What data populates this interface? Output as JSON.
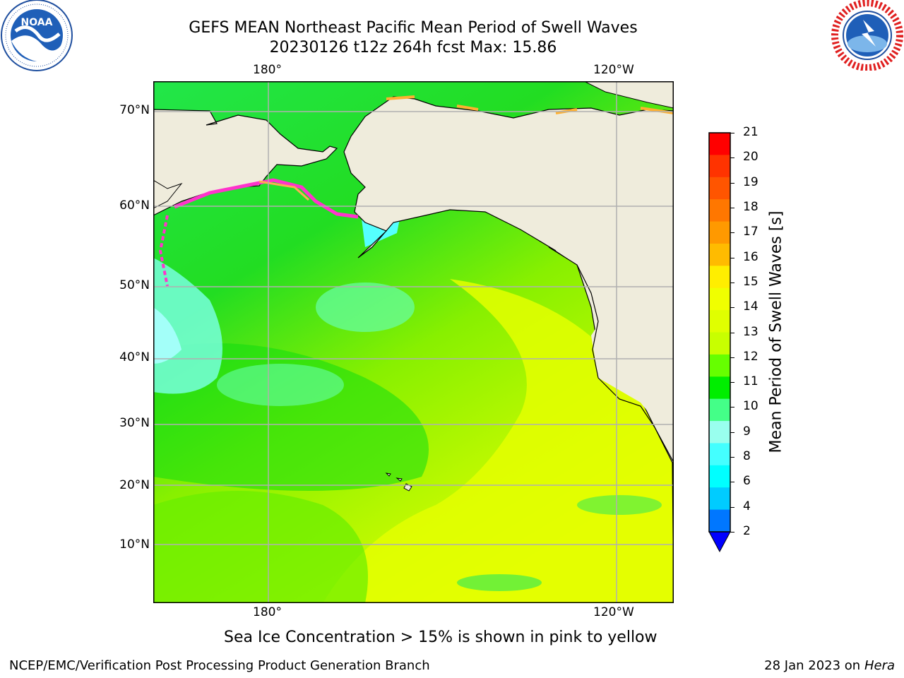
{
  "header": {
    "title_line1": "GEFS MEAN Northeast Pacific Mean Period of Swell Waves",
    "title_line2": "20230126 t12z 264h fcst   Max: 15.86"
  },
  "logos": {
    "noaa_text": "NOAA",
    "noaa_ring": "NATIONAL OCEANIC AND ATMOSPHERIC ADMINISTRATION · U.S. DEPARTMENT OF COMMERCE",
    "nws_ring": "NATIONAL WEATHER SERVICE"
  },
  "map": {
    "lon_labels_top": [
      "180°",
      "120°W"
    ],
    "lon_labels_bottom": [
      "180°",
      "120°W"
    ],
    "lat_labels": [
      "70°N",
      "60°N",
      "50°N",
      "40°N",
      "30°N",
      "20°N",
      "10°N"
    ],
    "colors": {
      "land": "#efecdc",
      "ocean_green": "#33dd22",
      "ocean_yellow": "#e6ff00",
      "grid": "#b0b0b0",
      "coast": "#000000"
    }
  },
  "colorbar": {
    "label": "Mean Period of Swell Waves [s]",
    "ticks": [
      "21",
      "20",
      "19",
      "18",
      "17",
      "16",
      "15",
      "14",
      "13",
      "12",
      "11",
      "10",
      "9",
      "8",
      "6",
      "4",
      "2"
    ],
    "colors": [
      "#ff0000",
      "#ff3300",
      "#ff5500",
      "#ff7700",
      "#ff9900",
      "#ffbb00",
      "#ffee00",
      "#f0ff00",
      "#e0ff00",
      "#c8ff00",
      "#66ff00",
      "#00ee00",
      "#44ff88",
      "#99ffee",
      "#44ffff",
      "#00ffff",
      "#00ccff",
      "#0077ff"
    ],
    "extend_color": "#0000ff"
  },
  "note": "Sea Ice Concentration > 15% is shown in pink to yellow",
  "footer": {
    "left": "NCEP/EMC/Verification Post Processing Product Generation Branch",
    "right_date": "28 Jan 2023 on ",
    "right_host": "Hera"
  }
}
